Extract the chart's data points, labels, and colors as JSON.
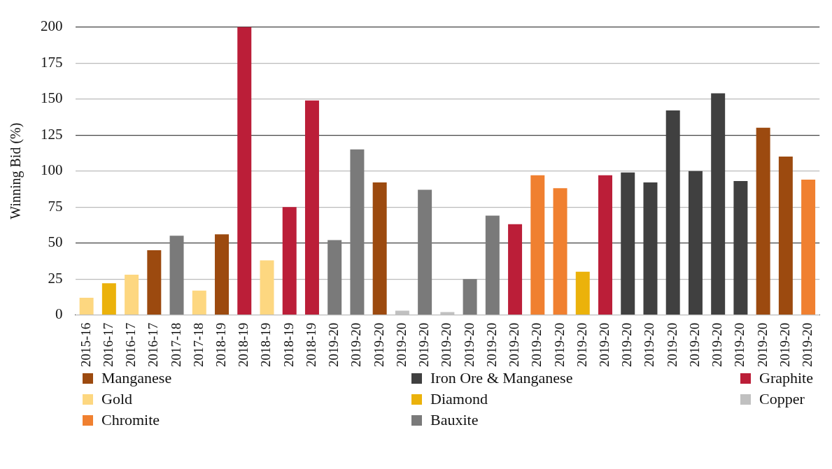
{
  "chart_data": {
    "type": "bar",
    "ylabel": "Winning Bid (%)",
    "categories": [
      "2015-16",
      "2016-17",
      "2016-17",
      "2016-17",
      "2017-18",
      "2017-18",
      "2018-19",
      "2018-19",
      "2018-19",
      "2018-19",
      "2018-19",
      "2019-20",
      "2019-20",
      "2019-20",
      "2019-20",
      "2019-20",
      "2019-20",
      "2019-20",
      "2019-20",
      "2019-20",
      "2019-20",
      "2019-20",
      "2019-20",
      "2019-20",
      "2019-20",
      "2019-20",
      "2019-20",
      "2019-20",
      "2019-20",
      "2019-20",
      "2019-20",
      "2019-20",
      "2019-20"
    ],
    "series": [
      {
        "name": "Manganese",
        "color": "#9c4a0f",
        "values": [
          null,
          null,
          null,
          45,
          null,
          null,
          56,
          null,
          null,
          null,
          null,
          null,
          null,
          92,
          null,
          null,
          null,
          null,
          null,
          null,
          null,
          null,
          null,
          null,
          null,
          null,
          null,
          null,
          null,
          null,
          130,
          110,
          null
        ]
      },
      {
        "name": "Iron Ore & Manganese",
        "color": "#404040",
        "values": [
          null,
          null,
          null,
          null,
          null,
          null,
          null,
          null,
          null,
          null,
          null,
          null,
          null,
          null,
          null,
          null,
          null,
          null,
          null,
          null,
          null,
          null,
          null,
          null,
          99,
          92,
          142,
          100,
          154,
          93,
          null,
          null,
          null
        ]
      },
      {
        "name": "Graphite",
        "color": "#bb1e38",
        "values": [
          null,
          null,
          null,
          null,
          null,
          null,
          null,
          200,
          null,
          75,
          149,
          null,
          null,
          null,
          null,
          null,
          null,
          null,
          null,
          63,
          null,
          null,
          null,
          97,
          null,
          null,
          null,
          null,
          null,
          null,
          null,
          null,
          null
        ]
      },
      {
        "name": "Gold",
        "color": "#fdd780",
        "values": [
          12,
          null,
          28,
          null,
          null,
          17,
          null,
          null,
          38,
          null,
          null,
          null,
          null,
          null,
          null,
          null,
          null,
          null,
          null,
          null,
          null,
          null,
          null,
          null,
          null,
          null,
          null,
          null,
          null,
          null,
          null,
          null,
          null
        ]
      },
      {
        "name": "Diamond",
        "color": "#ebb20b",
        "values": [
          null,
          22,
          null,
          null,
          null,
          null,
          null,
          null,
          null,
          null,
          null,
          null,
          null,
          null,
          null,
          null,
          null,
          null,
          null,
          null,
          null,
          null,
          30,
          null,
          null,
          null,
          null,
          null,
          null,
          null,
          null,
          null,
          null
        ]
      },
      {
        "name": "Copper",
        "color": "#c0c0c0",
        "values": [
          null,
          null,
          null,
          null,
          null,
          null,
          null,
          null,
          null,
          null,
          null,
          null,
          null,
          null,
          3,
          null,
          2,
          null,
          null,
          null,
          null,
          null,
          null,
          null,
          null,
          null,
          null,
          null,
          null,
          null,
          null,
          null,
          null
        ]
      },
      {
        "name": "Chromite",
        "color": "#f08030",
        "values": [
          null,
          null,
          null,
          null,
          null,
          null,
          null,
          null,
          null,
          null,
          null,
          null,
          null,
          null,
          null,
          null,
          null,
          null,
          null,
          null,
          97,
          88,
          null,
          null,
          null,
          null,
          null,
          null,
          null,
          null,
          null,
          null,
          94
        ]
      },
      {
        "name": "Bauxite",
        "color": "#7a7a7a",
        "values": [
          null,
          null,
          null,
          null,
          55,
          null,
          null,
          null,
          null,
          null,
          null,
          52,
          115,
          null,
          null,
          87,
          null,
          25,
          69,
          null,
          null,
          null,
          null,
          null,
          null,
          null,
          null,
          null,
          null,
          null,
          null,
          null,
          null
        ]
      }
    ],
    "ylim": [
      0,
      200
    ],
    "yticks": [
      0,
      25,
      50,
      75,
      100,
      125,
      150,
      175,
      200
    ],
    "grid": "y",
    "legend": "bottom"
  }
}
